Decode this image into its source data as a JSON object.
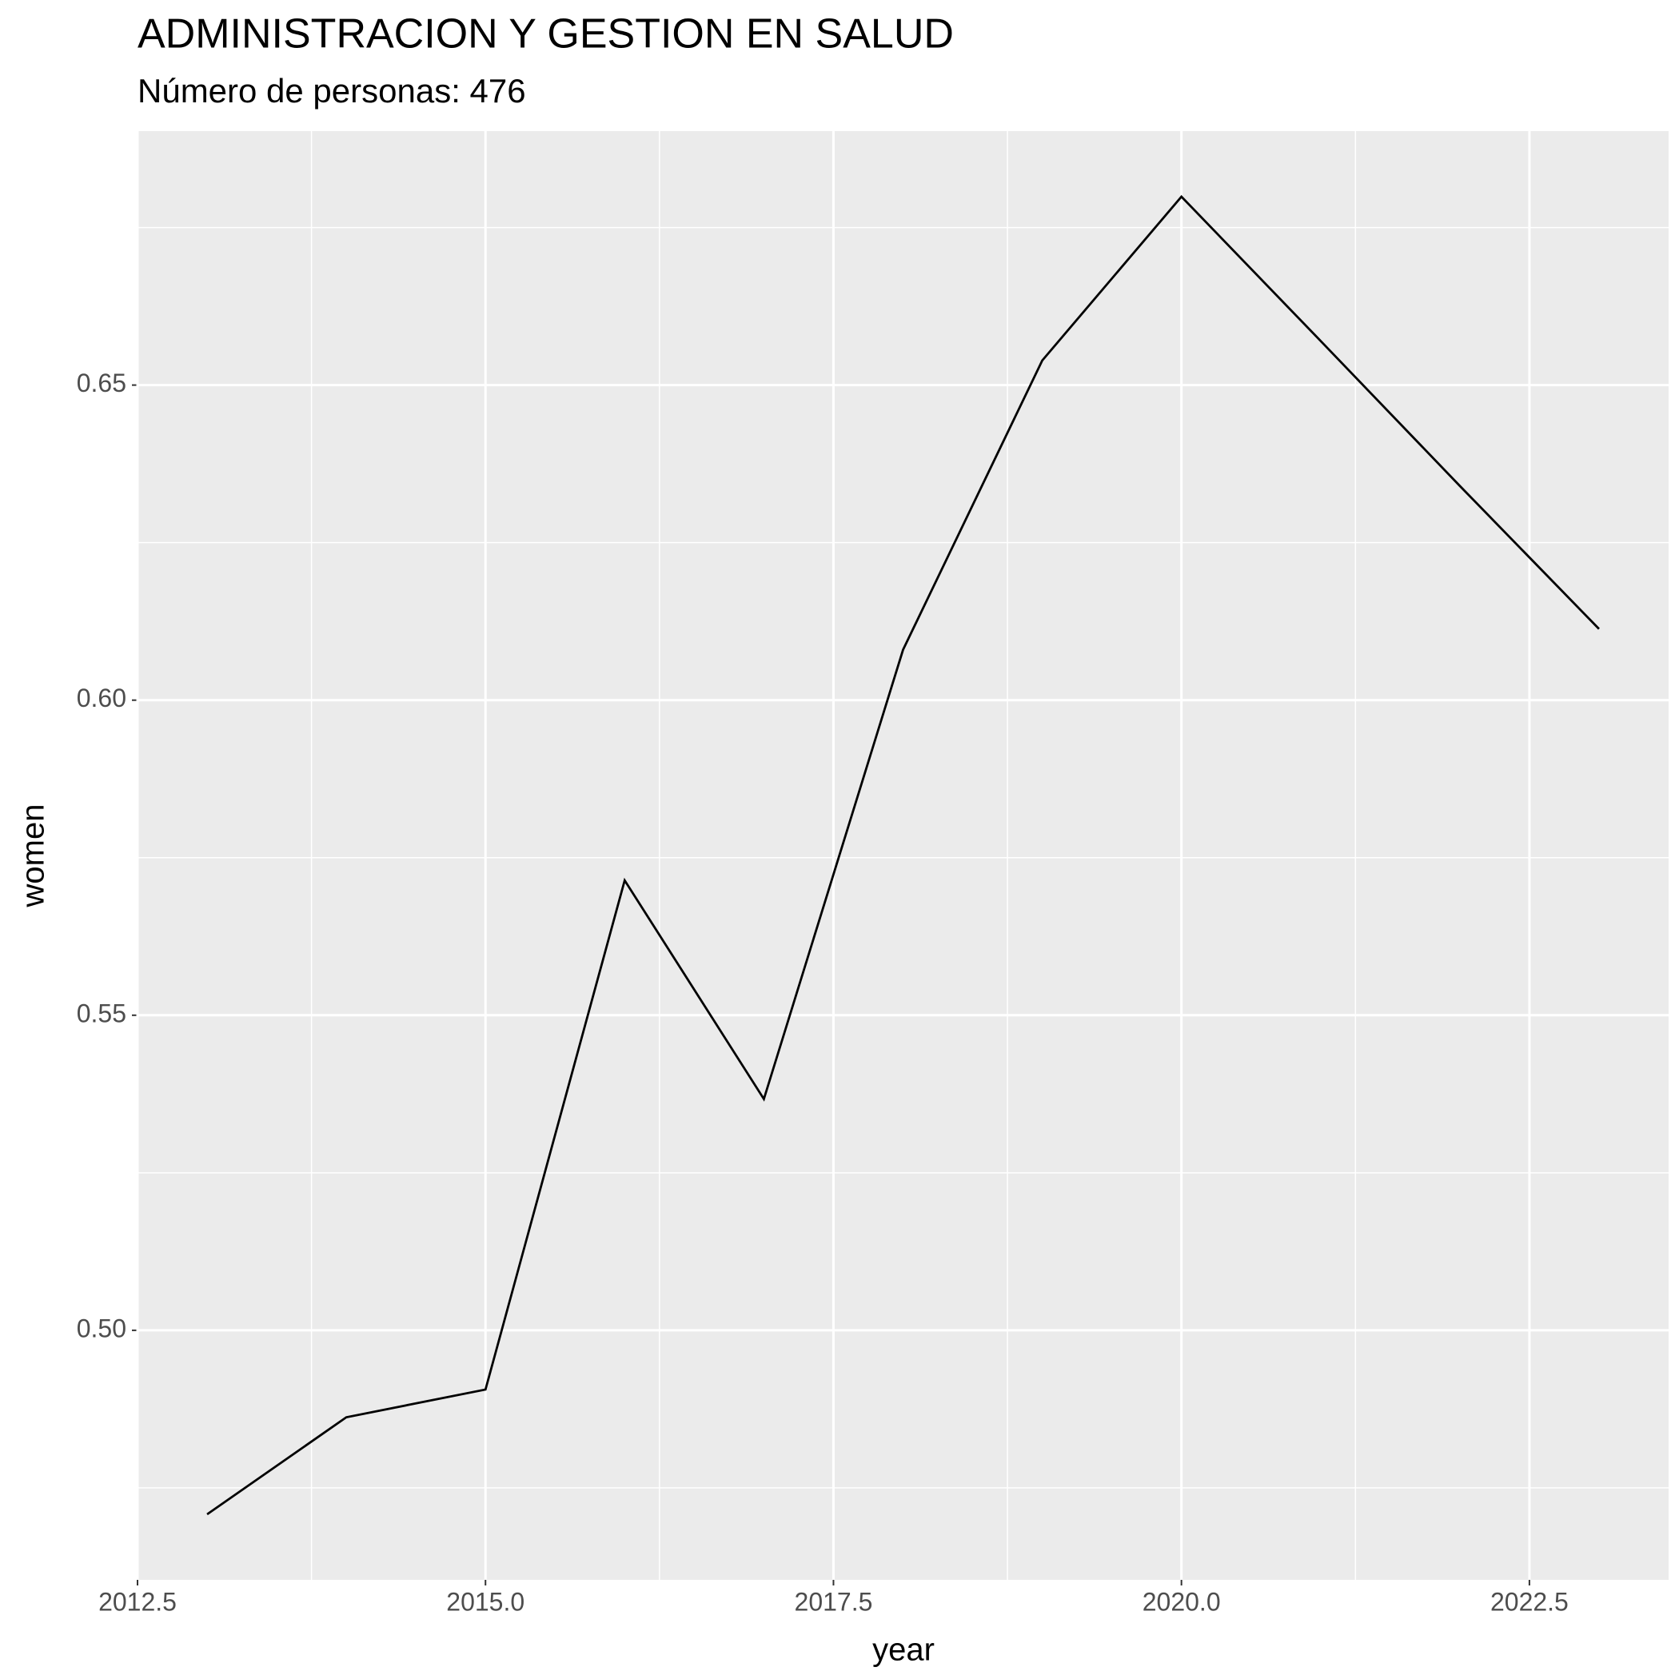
{
  "chart_data": {
    "type": "line",
    "title": "ADMINISTRACION Y GESTION EN SALUD",
    "subtitle": "Número de personas: 476",
    "x_label": "year",
    "y_label": "women",
    "x": [
      2013,
      2014,
      2015,
      2016,
      2017,
      2018,
      2019,
      2020,
      2021,
      2022,
      2023
    ],
    "series": [
      {
        "name": "women",
        "color": "#000000",
        "values": [
          0.4708,
          0.4862,
          0.4906,
          0.5714,
          0.5367,
          0.608,
          0.6539,
          0.6799,
          0.657,
          0.634,
          0.6113
        ]
      }
    ],
    "xlim": [
      2012.5,
      2023.5
    ],
    "ylim": [
      0.4604,
      0.6903
    ],
    "xticks": [
      2012.5,
      {
        "value": 2015,
        "label": "2015.0"
      },
      2017.5,
      {
        "value": 2020,
        "label": "2020.0"
      },
      2022.5
    ],
    "yticks": [
      {
        "value": 0.5,
        "label": "0.50"
      },
      0.55,
      {
        "value": 0.6,
        "label": "0.60"
      },
      0.65
    ],
    "grid": true
  }
}
